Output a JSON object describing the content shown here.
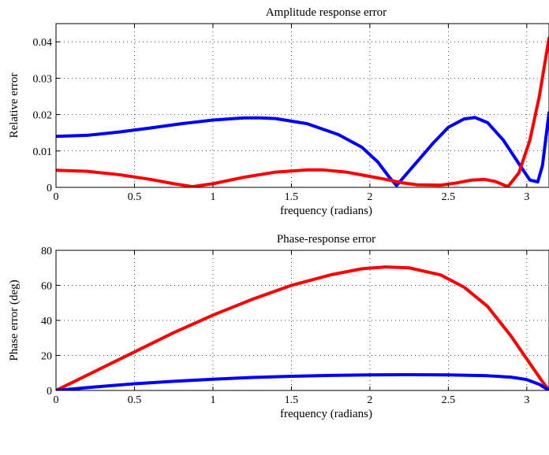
{
  "chart_data": [
    {
      "type": "line",
      "title": "Amplitude response error",
      "xlabel": "frequency (radians)",
      "ylabel": "Relative error",
      "xlim": [
        0,
        3.14159
      ],
      "ylim": [
        0,
        0.045
      ],
      "xticks": [
        0,
        0.5,
        1,
        1.5,
        2,
        2.5,
        3
      ],
      "xtick_labels": [
        "0",
        "0.5",
        "1",
        "1.5",
        "2",
        "2.5",
        "3"
      ],
      "yticks": [
        0,
        0.01,
        0.02,
        0.03,
        0.04
      ],
      "ytick_labels": [
        "0",
        "0.01",
        "0.02",
        "0.03",
        "0.04"
      ],
      "grid": true,
      "series": [
        {
          "color": "#0000ff",
          "x": [
            0,
            0.2,
            0.4,
            0.6,
            0.8,
            1.0,
            1.2,
            1.3,
            1.4,
            1.6,
            1.8,
            1.95,
            2.05,
            2.12,
            2.17,
            2.22,
            2.3,
            2.4,
            2.5,
            2.6,
            2.67,
            2.75,
            2.85,
            2.95,
            3.02,
            3.07,
            3.1,
            3.14159
          ],
          "y": [
            0.014,
            0.0143,
            0.0152,
            0.0163,
            0.0175,
            0.0185,
            0.0191,
            0.0191,
            0.0189,
            0.0175,
            0.0145,
            0.011,
            0.007,
            0.003,
            0.0005,
            0.003,
            0.007,
            0.012,
            0.0165,
            0.0188,
            0.0192,
            0.0178,
            0.013,
            0.0065,
            0.002,
            0.0015,
            0.006,
            0.0205
          ]
        },
        {
          "color": "#ff0000",
          "x": [
            0,
            0.2,
            0.4,
            0.6,
            0.75,
            0.87,
            1.0,
            1.2,
            1.4,
            1.6,
            1.7,
            1.85,
            2.0,
            2.1,
            2.2,
            2.3,
            2.45,
            2.55,
            2.65,
            2.73,
            2.8,
            2.88,
            2.95,
            3.02,
            3.08,
            3.14159
          ],
          "y": [
            0.0047,
            0.0044,
            0.0035,
            0.0022,
            0.001,
            0.0002,
            0.001,
            0.0028,
            0.0042,
            0.0048,
            0.0048,
            0.0042,
            0.003,
            0.0022,
            0.0013,
            0.0007,
            0.0006,
            0.0012,
            0.002,
            0.0022,
            0.0016,
            0.0002,
            0.004,
            0.013,
            0.025,
            0.041
          ]
        }
      ]
    },
    {
      "type": "line",
      "title": "Phase-response error",
      "xlabel": "frequency (radians)",
      "ylabel": "Phase error (deg)",
      "xlim": [
        0,
        3.14159
      ],
      "ylim": [
        0,
        80
      ],
      "xticks": [
        0,
        0.5,
        1,
        1.5,
        2,
        2.5,
        3
      ],
      "xtick_labels": [
        "0",
        "0.5",
        "1",
        "1.5",
        "2",
        "2.5",
        "3"
      ],
      "yticks": [
        0,
        20,
        40,
        60,
        80
      ],
      "ytick_labels": [
        "0",
        "20",
        "40",
        "60",
        "80"
      ],
      "grid": true,
      "series": [
        {
          "color": "#ff0000",
          "x": [
            0,
            0.25,
            0.5,
            0.75,
            1.0,
            1.25,
            1.5,
            1.75,
            1.95,
            2.1,
            2.25,
            2.45,
            2.6,
            2.75,
            2.9,
            3.0,
            3.1,
            3.14159
          ],
          "y": [
            0,
            11,
            22,
            33,
            43,
            52,
            60,
            66,
            69.5,
            70.5,
            70,
            66,
            59,
            48,
            31,
            18,
            5,
            0
          ]
        },
        {
          "color": "#0000ff",
          "x": [
            0,
            0.25,
            0.5,
            0.75,
            1.0,
            1.25,
            1.5,
            1.75,
            2.0,
            2.25,
            2.5,
            2.75,
            2.9,
            3.0,
            3.08,
            3.14159
          ],
          "y": [
            0,
            2,
            3.8,
            5.2,
            6.4,
            7.4,
            8.1,
            8.6,
            8.9,
            9.0,
            8.9,
            8.4,
            7.6,
            6.2,
            3.5,
            0
          ]
        }
      ]
    }
  ]
}
